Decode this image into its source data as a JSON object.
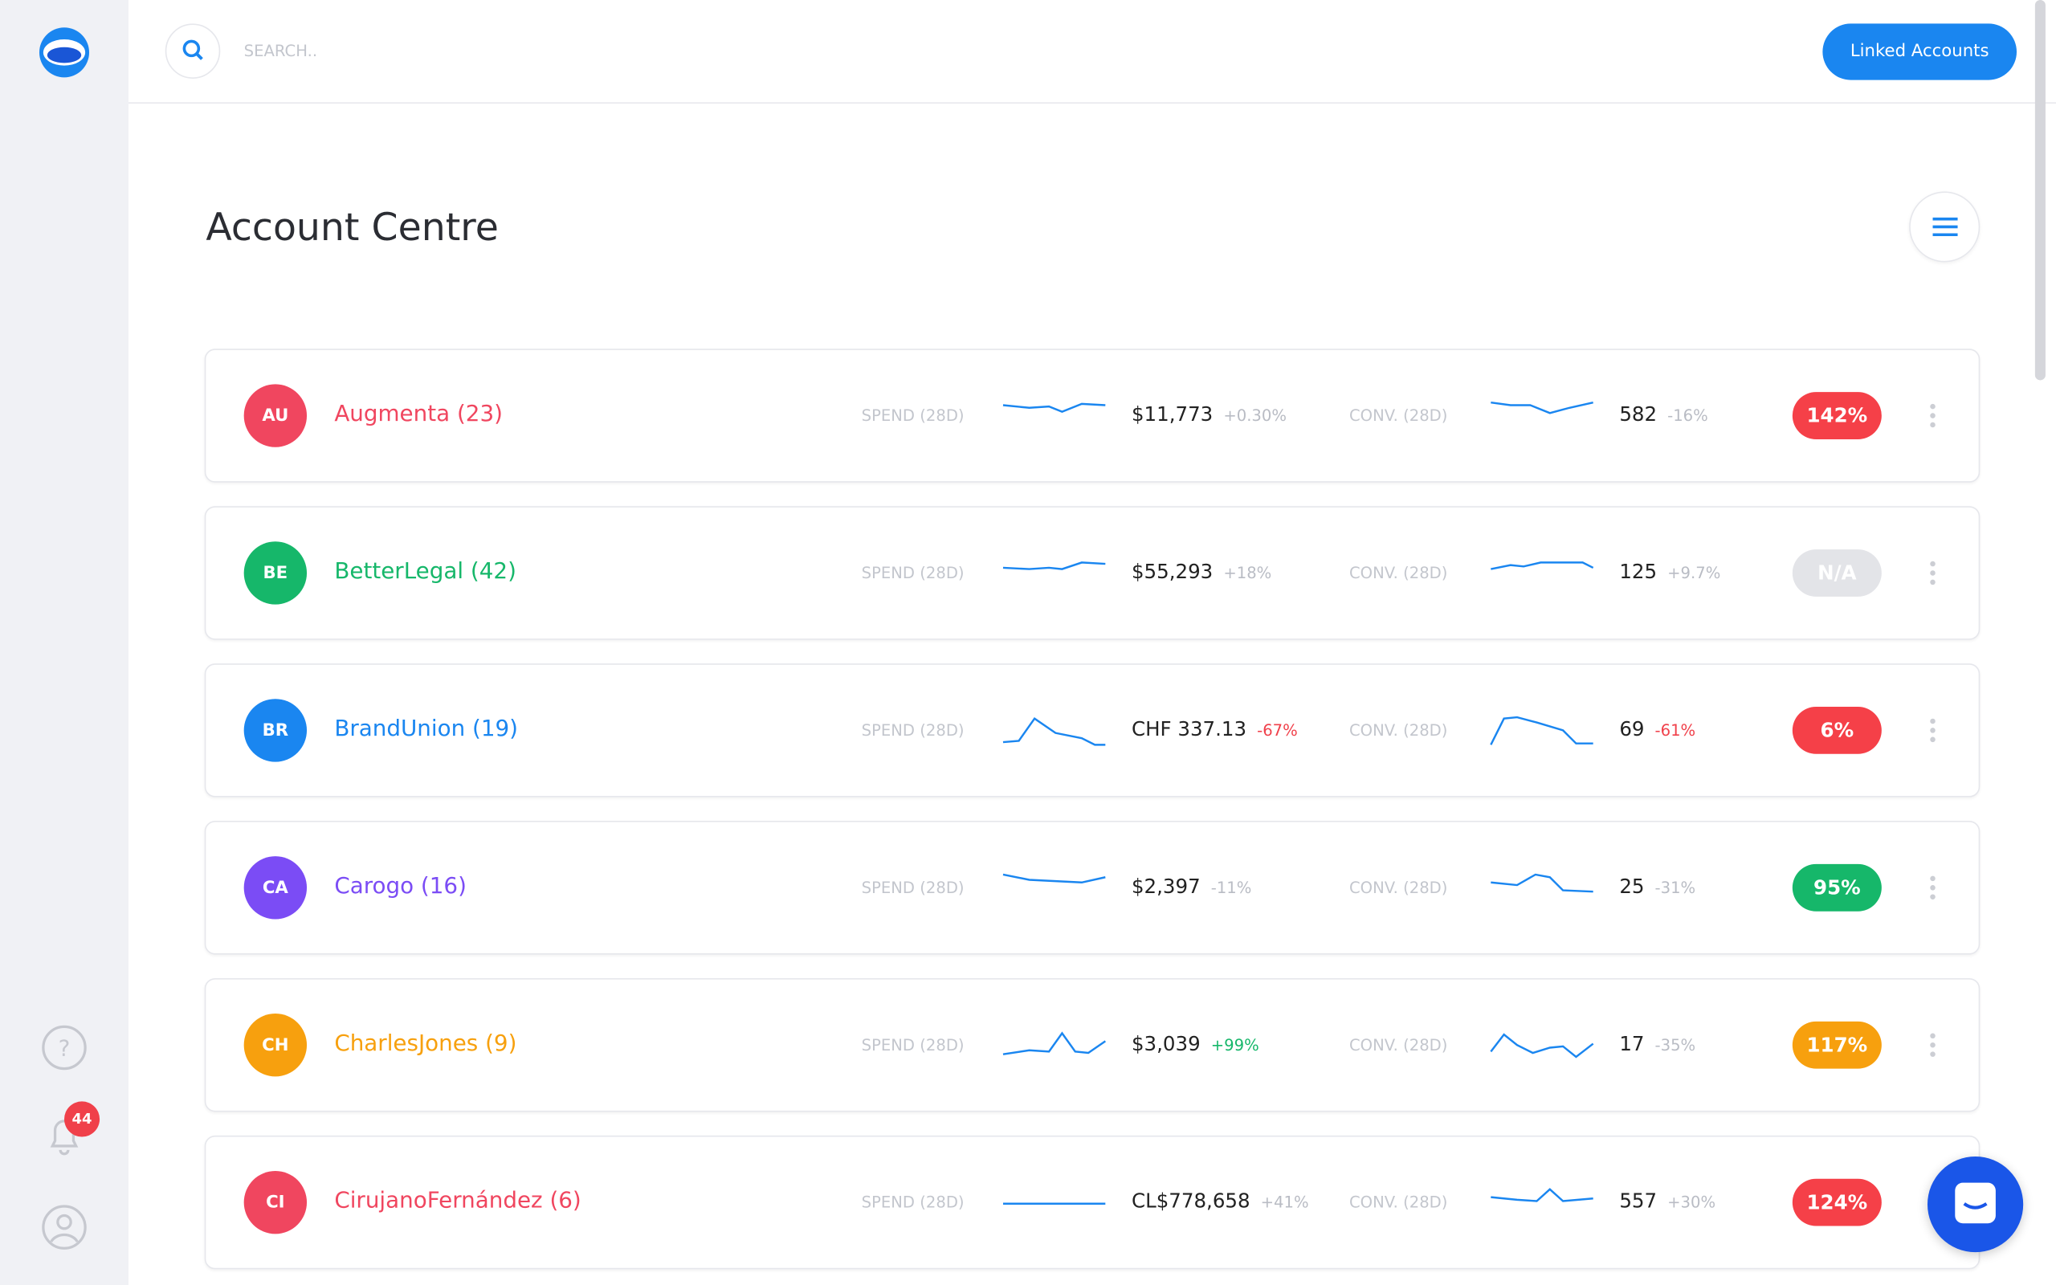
{
  "search": {
    "placeholder": "SEARCH.."
  },
  "header": {
    "button": "Linked Accounts",
    "title": "Account Centre"
  },
  "notifications": {
    "count": "44"
  },
  "accounts": [
    {
      "initials": "AU",
      "name": "Augmenta",
      "count": "(23)",
      "color": "#f0465f",
      "spend_label": "SPEND (28D)",
      "spend": "$11,773",
      "spend_change": "+0.30%",
      "spend_change_color": "#b9bcc4",
      "conv_label": "CONV. (28D)",
      "conv": "582",
      "conv_change": "-16%",
      "conv_change_color": "#b9bcc4",
      "roas": "142%",
      "roas_color": "#f54048"
    },
    {
      "initials": "BE",
      "name": "BetterLegal",
      "count": "(42)",
      "color": "#16b76a",
      "spend_label": "SPEND (28D)",
      "spend": "$55,293",
      "spend_change": "+18%",
      "spend_change_color": "#b9bcc4",
      "conv_label": "CONV. (28D)",
      "conv": "125",
      "conv_change": "+9.7%",
      "conv_change_color": "#b9bcc4",
      "roas": "N/A",
      "roas_color": "#e3e4e8"
    },
    {
      "initials": "BR",
      "name": "BrandUnion",
      "count": "(19)",
      "color": "#1a86f0",
      "spend_label": "SPEND (28D)",
      "spend": "CHF 337.13",
      "spend_change": "-67%",
      "spend_change_color": "#f0404a",
      "conv_label": "CONV. (28D)",
      "conv": "69",
      "conv_change": "-61%",
      "conv_change_color": "#f0404a",
      "roas": "6%",
      "roas_color": "#f54048"
    },
    {
      "initials": "CA",
      "name": "Carogo",
      "count": "(16)",
      "color": "#7b4cf5",
      "spend_label": "SPEND (28D)",
      "spend": "$2,397",
      "spend_change": "-11%",
      "spend_change_color": "#b9bcc4",
      "conv_label": "CONV. (28D)",
      "conv": "25",
      "conv_change": "-31%",
      "conv_change_color": "#b9bcc4",
      "roas": "95%",
      "roas_color": "#16b76a"
    },
    {
      "initials": "CH",
      "name": "CharlesJones",
      "count": "(9)",
      "color": "#f7a00e",
      "spend_label": "SPEND (28D)",
      "spend": "$3,039",
      "spend_change": "+99%",
      "spend_change_color": "#16b76a",
      "conv_label": "CONV. (28D)",
      "conv": "17",
      "conv_change": "-35%",
      "conv_change_color": "#b9bcc4",
      "roas": "117%",
      "roas_color": "#f7a00e"
    },
    {
      "initials": "CI",
      "name": "CirujanoFernández",
      "count": "(6)",
      "color": "#f0465f",
      "spend_label": "SPEND (28D)",
      "spend": "CL$778,658",
      "spend_change": "+41%",
      "spend_change_color": "#b9bcc4",
      "conv_label": "CONV. (28D)",
      "conv": "557",
      "conv_change": "+30%",
      "conv_change_color": "#b9bcc4",
      "roas": "124%",
      "roas_color": "#f54048"
    }
  ]
}
